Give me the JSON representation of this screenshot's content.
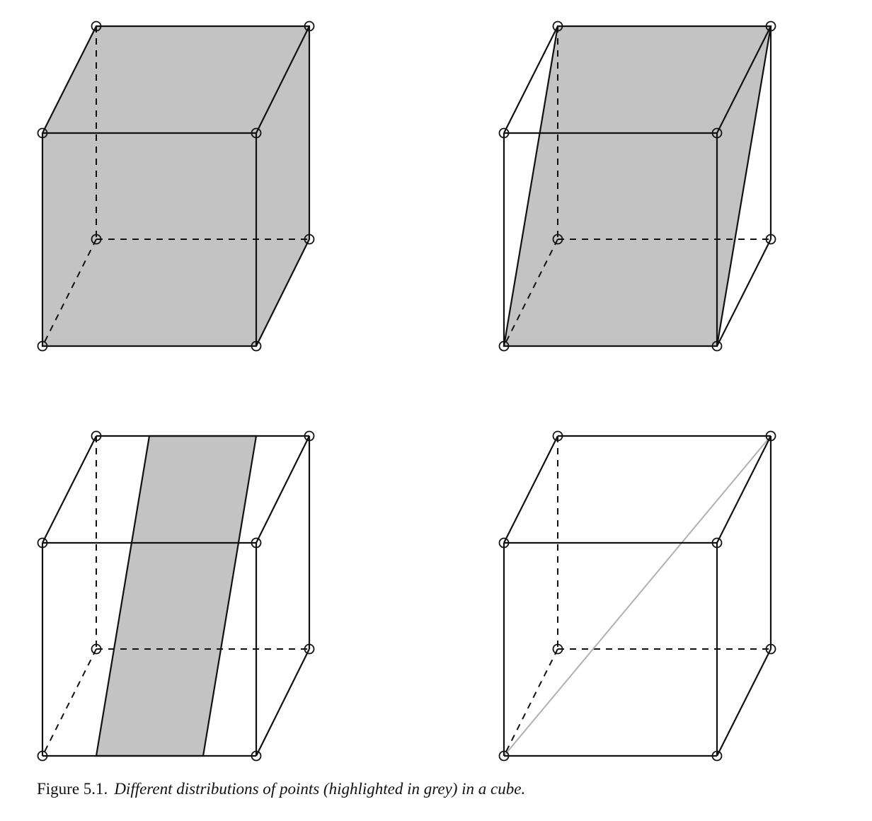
{
  "figure": {
    "caption_label": "Figure 5.1.",
    "caption_text": "Different distributions of points (highlighted in grey) in a cube.",
    "highlight_color": "#c3c3c3",
    "line_color": "#111111",
    "panels": [
      {
        "name": "top-left",
        "highlight": "front-and-top-faces-and-right-side-fill"
      },
      {
        "name": "top-right",
        "highlight": "diagonal-plane"
      },
      {
        "name": "bottom-left",
        "highlight": "slanted-band"
      },
      {
        "name": "bottom-right",
        "highlight": "space-diagonal-line"
      }
    ]
  }
}
